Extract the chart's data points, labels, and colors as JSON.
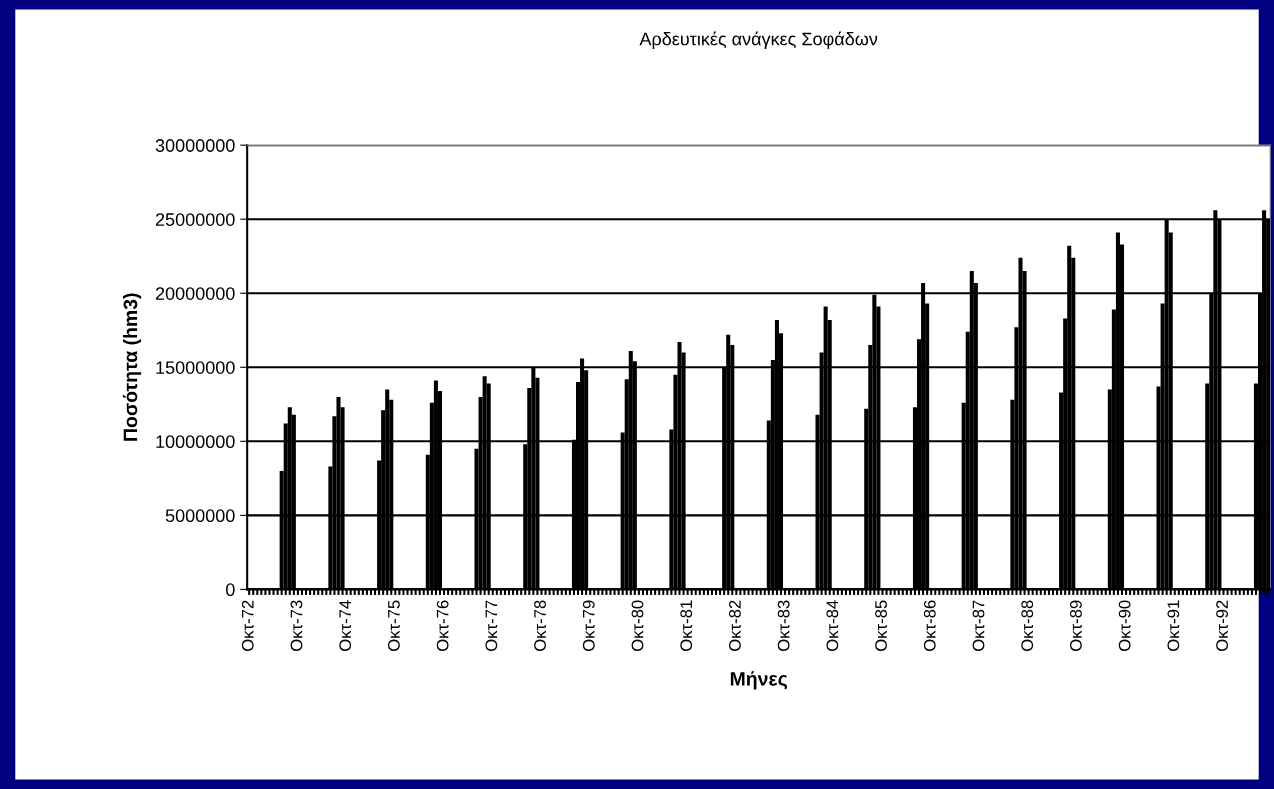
{
  "chart_data": {
    "type": "bar",
    "title": "Αρδευτικές ανάγκες Σοφάδων",
    "xlabel": "Μήνες",
    "ylabel": "Ποσότητα (hm3)",
    "color": "#000000",
    "ylim": [
      0,
      30000000
    ],
    "yticks": [
      0,
      5000000,
      10000000,
      15000000,
      20000000,
      25000000,
      30000000
    ],
    "grid": "y",
    "legend": false,
    "categories": [
      "Οκτ-72",
      null,
      null,
      null,
      null,
      null,
      null,
      null,
      null,
      null,
      null,
      null,
      "Οκτ-73",
      null,
      null,
      null,
      null,
      null,
      null,
      null,
      null,
      null,
      null,
      null,
      "Οκτ-74",
      null,
      null,
      null,
      null,
      null,
      null,
      null,
      null,
      null,
      null,
      null,
      "Οκτ-75",
      null,
      null,
      null,
      null,
      null,
      null,
      null,
      null,
      null,
      null,
      null,
      "Οκτ-76",
      null,
      null,
      null,
      null,
      null,
      null,
      null,
      null,
      null,
      null,
      null,
      "Οκτ-77",
      null,
      null,
      null,
      null,
      null,
      null,
      null,
      null,
      null,
      null,
      null,
      "Οκτ-78",
      null,
      null,
      null,
      null,
      null,
      null,
      null,
      null,
      null,
      null,
      null,
      "Οκτ-79",
      null,
      null,
      null,
      null,
      null,
      null,
      null,
      null,
      null,
      null,
      null,
      "Οκτ-80",
      null,
      null,
      null,
      null,
      null,
      null,
      null,
      null,
      null,
      null,
      null,
      "Οκτ-81",
      null,
      null,
      null,
      null,
      null,
      null,
      null,
      null,
      null,
      null,
      null,
      "Οκτ-82",
      null,
      null,
      null,
      null,
      null,
      null,
      null,
      null,
      null,
      null,
      null,
      "Οκτ-83",
      null,
      null,
      null,
      null,
      null,
      null,
      null,
      null,
      null,
      null,
      null,
      "Οκτ-84",
      null,
      null,
      null,
      null,
      null,
      null,
      null,
      null,
      null,
      null,
      null,
      "Οκτ-85",
      null,
      null,
      null,
      null,
      null,
      null,
      null,
      null,
      null,
      null,
      null,
      "Οκτ-86",
      null,
      null,
      null,
      null,
      null,
      null,
      null,
      null,
      null,
      null,
      null,
      "Οκτ-87",
      null,
      null,
      null,
      null,
      null,
      null,
      null,
      null,
      null,
      null,
      null,
      "Οκτ-88",
      null,
      null,
      null,
      null,
      null,
      null,
      null,
      null,
      null,
      null,
      null,
      "Οκτ-89",
      null,
      null,
      null,
      null,
      null,
      null,
      null,
      null,
      null,
      null,
      null,
      "Οκτ-90",
      null,
      null,
      null,
      null,
      null,
      null,
      null,
      null,
      null,
      null,
      null,
      "Οκτ-91",
      null,
      null,
      null,
      null,
      null,
      null,
      null,
      null,
      null,
      null,
      null,
      "Οκτ-92",
      null,
      null,
      null,
      null,
      null,
      null,
      null,
      null,
      null,
      null,
      null
    ],
    "values": [
      0,
      0,
      0,
      0,
      0,
      0,
      0,
      0,
      8000000,
      11200000,
      12300000,
      11800000,
      0,
      0,
      0,
      0,
      0,
      0,
      0,
      0,
      8300000,
      11700000,
      13000000,
      12300000,
      0,
      0,
      0,
      0,
      0,
      0,
      0,
      0,
      8700000,
      12100000,
      13500000,
      12800000,
      0,
      0,
      0,
      0,
      0,
      0,
      0,
      0,
      9100000,
      12600000,
      14100000,
      13400000,
      0,
      0,
      0,
      0,
      0,
      0,
      0,
      0,
      9500000,
      13000000,
      14400000,
      13900000,
      0,
      0,
      0,
      0,
      0,
      0,
      0,
      0,
      9800000,
      13600000,
      15000000,
      14300000,
      0,
      0,
      0,
      0,
      0,
      0,
      0,
      0,
      10100000,
      14000000,
      15600000,
      14800000,
      0,
      0,
      0,
      0,
      0,
      0,
      0,
      0,
      10600000,
      14200000,
      16100000,
      15400000,
      0,
      0,
      0,
      0,
      0,
      0,
      0,
      0,
      10800000,
      14500000,
      16700000,
      16000000,
      0,
      0,
      0,
      0,
      0,
      0,
      0,
      0,
      0,
      15000000,
      17200000,
      16500000,
      0,
      0,
      0,
      0,
      0,
      0,
      0,
      0,
      11400000,
      15500000,
      18200000,
      17300000,
      0,
      0,
      0,
      0,
      0,
      0,
      0,
      0,
      11800000,
      16000000,
      19100000,
      18200000,
      0,
      0,
      0,
      0,
      0,
      0,
      0,
      0,
      12200000,
      16500000,
      19900000,
      19100000,
      0,
      0,
      0,
      0,
      0,
      0,
      0,
      0,
      12300000,
      16900000,
      20700000,
      19300000,
      0,
      0,
      0,
      0,
      0,
      0,
      0,
      0,
      12600000,
      17400000,
      21500000,
      20700000,
      0,
      0,
      0,
      0,
      0,
      0,
      0,
      0,
      12800000,
      17700000,
      22400000,
      21500000,
      0,
      0,
      0,
      0,
      0,
      0,
      0,
      0,
      13300000,
      18300000,
      23200000,
      22400000,
      0,
      0,
      0,
      0,
      0,
      0,
      0,
      0,
      13500000,
      18900000,
      24100000,
      23300000,
      0,
      0,
      0,
      0,
      0,
      0,
      0,
      0,
      13700000,
      19300000,
      25000000,
      24100000,
      0,
      0,
      0,
      0,
      0,
      0,
      0,
      0,
      13900000,
      20000000,
      25600000,
      25000000,
      0,
      0,
      0,
      0,
      0,
      0,
      0,
      0,
      13900000,
      20000000,
      25600000,
      25000000
    ]
  }
}
